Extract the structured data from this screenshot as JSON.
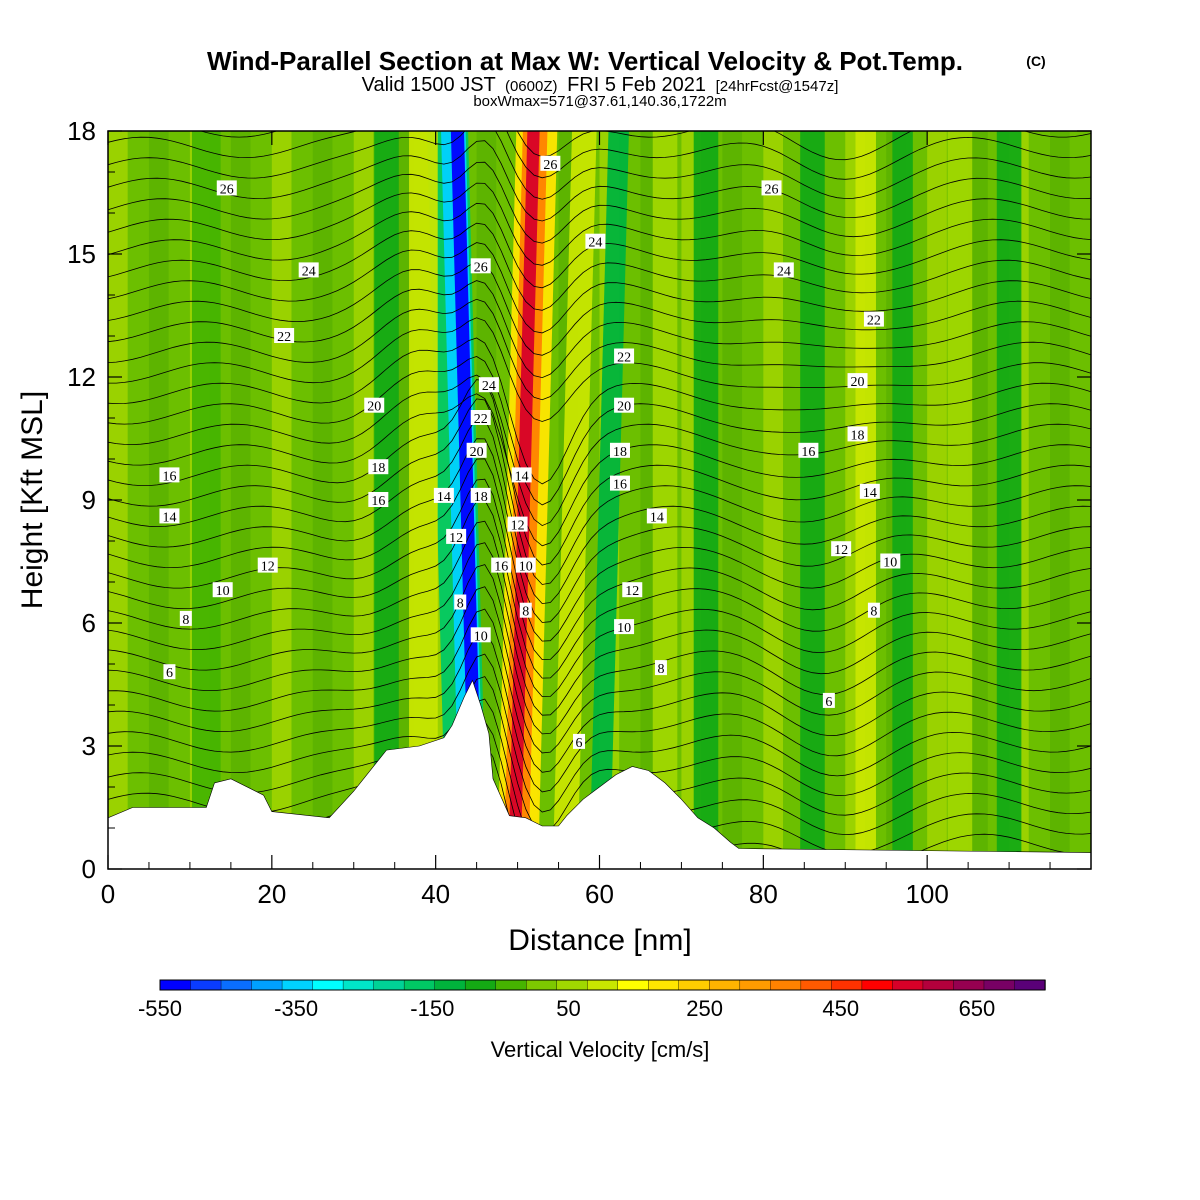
{
  "chart_data": {
    "type": "heatmap",
    "title": "Wind-Parallel Section at Max W: Vertical Velocity & Pot.Temp.",
    "title_mark": "(C)",
    "subtitle": {
      "valid_prefix": "Valid 1500 JST",
      "zulu": "(0600Z)",
      "valid_date": "FRI 5 Feb 2021",
      "forecast": "[24hrFcst@1547z]"
    },
    "subtitle2": "boxWmax=571@37.61,140.36,1722m",
    "xlabel": "Distance [nm]",
    "ylabel": "Height [Kft MSL]",
    "xlim": [
      0,
      120
    ],
    "ylim": [
      0,
      18
    ],
    "x_ticks": [
      0,
      20,
      40,
      60,
      80,
      100
    ],
    "y_ticks": [
      0,
      3,
      6,
      9,
      12,
      15,
      18
    ],
    "colorbar": {
      "label": "Vertical Velocity [cm/s]",
      "tick_labels": [
        "-550",
        "-350",
        "-150",
        "50",
        "250",
        "450",
        "650"
      ],
      "tick_values": [
        -550,
        -350,
        -150,
        50,
        250,
        450,
        650
      ],
      "range": [
        -550,
        750
      ],
      "colors": [
        "#0000ff",
        "#0a3cff",
        "#0a6eff",
        "#00a0ff",
        "#00d2ff",
        "#00ffff",
        "#00e6c8",
        "#00d296",
        "#00c864",
        "#00b43c",
        "#14aa14",
        "#46b400",
        "#7dc800",
        "#a0d700",
        "#c8e600",
        "#ffff00",
        "#ffe600",
        "#ffcd00",
        "#ffb400",
        "#ff9b00",
        "#ff8200",
        "#ff5a00",
        "#ff3200",
        "#ff0000",
        "#d70028",
        "#b4003c",
        "#960050",
        "#780064",
        "#5a0078"
      ]
    },
    "terrain": {
      "x": [
        0,
        3,
        12,
        13,
        15,
        19,
        20,
        27,
        30,
        34,
        38,
        41,
        42,
        43.5,
        44.5,
        45.5,
        46.5,
        47,
        49,
        51,
        53,
        55,
        56,
        58,
        60,
        62,
        64,
        66,
        68,
        70,
        72,
        74,
        76,
        77,
        120
      ],
      "y": [
        1.25,
        1.5,
        1.5,
        2.1,
        2.2,
        1.8,
        1.4,
        1.25,
        1.9,
        2.9,
        3.0,
        3.2,
        3.5,
        4.2,
        4.6,
        4.0,
        3.3,
        2.2,
        1.3,
        1.25,
        1.05,
        1.05,
        1.3,
        1.7,
        2.0,
        2.3,
        2.5,
        2.4,
        2.1,
        1.7,
        1.25,
        1.0,
        0.65,
        0.5,
        0.4
      ]
    },
    "vertical_velocity_bands": [
      {
        "x": 45.0,
        "w": 1.6,
        "value": -520
      },
      {
        "x": 44.5,
        "w": 3.0,
        "value": -330
      },
      {
        "x": 43.8,
        "w": 5.0,
        "value": -150
      },
      {
        "x": 49.6,
        "w": 1.5,
        "value": 560
      },
      {
        "x": 49.8,
        "w": 3.0,
        "value": 390
      },
      {
        "x": 50.0,
        "w": 5.0,
        "value": 180
      },
      {
        "x": 55.8,
        "w": 3.0,
        "value": 120
      },
      {
        "x": 60.0,
        "w": 2.5,
        "value": -110
      },
      {
        "x": 12.0,
        "w": 3.5,
        "value": -40
      },
      {
        "x": 38.5,
        "w": 3.5,
        "value": 90
      },
      {
        "x": 34.0,
        "w": 3.0,
        "value": -70
      },
      {
        "x": 68.0,
        "w": 3.0,
        "value": 70
      },
      {
        "x": 73.0,
        "w": 3.0,
        "value": -60
      },
      {
        "x": 86.0,
        "w": 3.0,
        "value": -60
      },
      {
        "x": 92.5,
        "w": 2.5,
        "value": 95
      },
      {
        "x": 97.0,
        "w": 2.5,
        "value": -70
      },
      {
        "x": 104.0,
        "w": 3.0,
        "value": 60
      },
      {
        "x": 110.0,
        "w": 3.0,
        "value": -60
      }
    ],
    "theta_contour_labels": [
      {
        "text": "26",
        "x": 14.5,
        "y": 16.6
      },
      {
        "text": "24",
        "x": 24.5,
        "y": 14.6
      },
      {
        "text": "22",
        "x": 21.5,
        "y": 13.0
      },
      {
        "text": "20",
        "x": 32.5,
        "y": 11.3
      },
      {
        "text": "18",
        "x": 33.0,
        "y": 9.8
      },
      {
        "text": "16",
        "x": 7.5,
        "y": 9.6
      },
      {
        "text": "14",
        "x": 7.5,
        "y": 8.6
      },
      {
        "text": "16",
        "x": 33.0,
        "y": 9.0
      },
      {
        "text": "14",
        "x": 41.0,
        "y": 9.1
      },
      {
        "text": "12",
        "x": 19.5,
        "y": 7.4
      },
      {
        "text": "12",
        "x": 42.5,
        "y": 8.1
      },
      {
        "text": "10",
        "x": 14.0,
        "y": 6.8
      },
      {
        "text": "8",
        "x": 9.5,
        "y": 6.1
      },
      {
        "text": "8",
        "x": 43.0,
        "y": 6.5
      },
      {
        "text": "6",
        "x": 7.5,
        "y": 4.8
      },
      {
        "text": "26",
        "x": 45.5,
        "y": 14.7
      },
      {
        "text": "24",
        "x": 46.5,
        "y": 11.8
      },
      {
        "text": "22",
        "x": 45.5,
        "y": 11.0
      },
      {
        "text": "20",
        "x": 45.0,
        "y": 10.2
      },
      {
        "text": "18",
        "x": 45.5,
        "y": 9.1
      },
      {
        "text": "16",
        "x": 48.0,
        "y": 7.4
      },
      {
        "text": "10",
        "x": 45.5,
        "y": 5.7
      },
      {
        "text": "14",
        "x": 50.5,
        "y": 9.6
      },
      {
        "text": "12",
        "x": 50.0,
        "y": 8.4
      },
      {
        "text": "10",
        "x": 51.0,
        "y": 7.4
      },
      {
        "text": "8",
        "x": 51.0,
        "y": 6.3
      },
      {
        "text": "26",
        "x": 54.0,
        "y": 17.2
      },
      {
        "text": "24",
        "x": 59.5,
        "y": 15.3
      },
      {
        "text": "22",
        "x": 63.0,
        "y": 12.5
      },
      {
        "text": "20",
        "x": 63.0,
        "y": 11.3
      },
      {
        "text": "18",
        "x": 62.5,
        "y": 10.2
      },
      {
        "text": "16",
        "x": 62.5,
        "y": 9.4
      },
      {
        "text": "14",
        "x": 67.0,
        "y": 8.6
      },
      {
        "text": "12",
        "x": 64.0,
        "y": 6.8
      },
      {
        "text": "10",
        "x": 63.0,
        "y": 5.9
      },
      {
        "text": "8",
        "x": 67.5,
        "y": 4.9
      },
      {
        "text": "6",
        "x": 57.5,
        "y": 3.1
      },
      {
        "text": "26",
        "x": 81.0,
        "y": 16.6
      },
      {
        "text": "24",
        "x": 82.5,
        "y": 14.6
      },
      {
        "text": "22",
        "x": 93.5,
        "y": 13.4
      },
      {
        "text": "20",
        "x": 91.5,
        "y": 11.9
      },
      {
        "text": "18",
        "x": 91.5,
        "y": 10.6
      },
      {
        "text": "16",
        "x": 85.5,
        "y": 10.2
      },
      {
        "text": "14",
        "x": 93.0,
        "y": 9.2
      },
      {
        "text": "12",
        "x": 89.5,
        "y": 7.8
      },
      {
        "text": "10",
        "x": 95.5,
        "y": 7.5
      },
      {
        "text": "8",
        "x": 93.5,
        "y": 6.3
      },
      {
        "text": "6",
        "x": 88.0,
        "y": 4.1
      }
    ]
  }
}
